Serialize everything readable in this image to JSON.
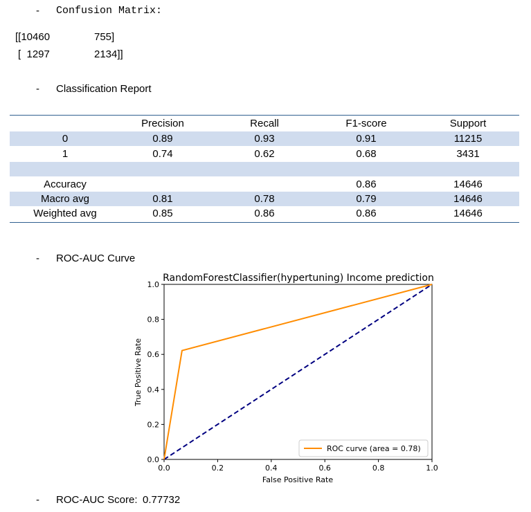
{
  "sections": {
    "confusion_title": "Confusion Matrix:",
    "report_title": "Classification Report",
    "roc_title": "ROC-AUC Curve",
    "score_label": "ROC-AUC Score:",
    "score_value": "0.77732",
    "bullet": "-"
  },
  "confusion_matrix": {
    "row1": {
      "a": "[[10460",
      "b": "755]"
    },
    "row2": {
      "a": "[  1297",
      "b": "2134]]"
    }
  },
  "report": {
    "headers": [
      "",
      "Precision",
      "Recall",
      "F1-score",
      "Support"
    ],
    "rows": [
      [
        "0",
        "0.89",
        "0.93",
        "0.91",
        "11215"
      ],
      [
        "1",
        "0.74",
        "0.62",
        "0.68",
        "3431"
      ],
      [
        "",
        "",
        "",
        "",
        ""
      ],
      [
        "Accuracy",
        "",
        "",
        "0.86",
        "14646"
      ],
      [
        "Macro avg",
        "0.81",
        "0.78",
        "0.79",
        "14646"
      ],
      [
        "Weighted avg",
        "0.85",
        "0.86",
        "0.86",
        "14646"
      ]
    ]
  },
  "chart_data": {
    "type": "line",
    "title": "RandomForestClassifier(hypertuning) Income prediction",
    "xlabel": "False Positive Rate",
    "ylabel": "True Positive Rate",
    "xlim": [
      0.0,
      1.0
    ],
    "ylim": [
      0.0,
      1.0
    ],
    "xticks": [
      "0.0",
      "0.2",
      "0.4",
      "0.6",
      "0.8",
      "1.0"
    ],
    "yticks": [
      "0.0",
      "0.2",
      "0.4",
      "0.6",
      "0.8",
      "1.0"
    ],
    "legend_position": "lower-right",
    "series": [
      {
        "name": "ROC curve (area = 0.78)",
        "color": "#ff8c00",
        "style": "solid",
        "x": [
          0.0,
          0.067,
          1.0
        ],
        "y": [
          0.0,
          0.622,
          1.0
        ]
      },
      {
        "color": "#000080",
        "style": "dashed",
        "x": [
          0.0,
          1.0
        ],
        "y": [
          0.0,
          1.0
        ]
      }
    ]
  }
}
